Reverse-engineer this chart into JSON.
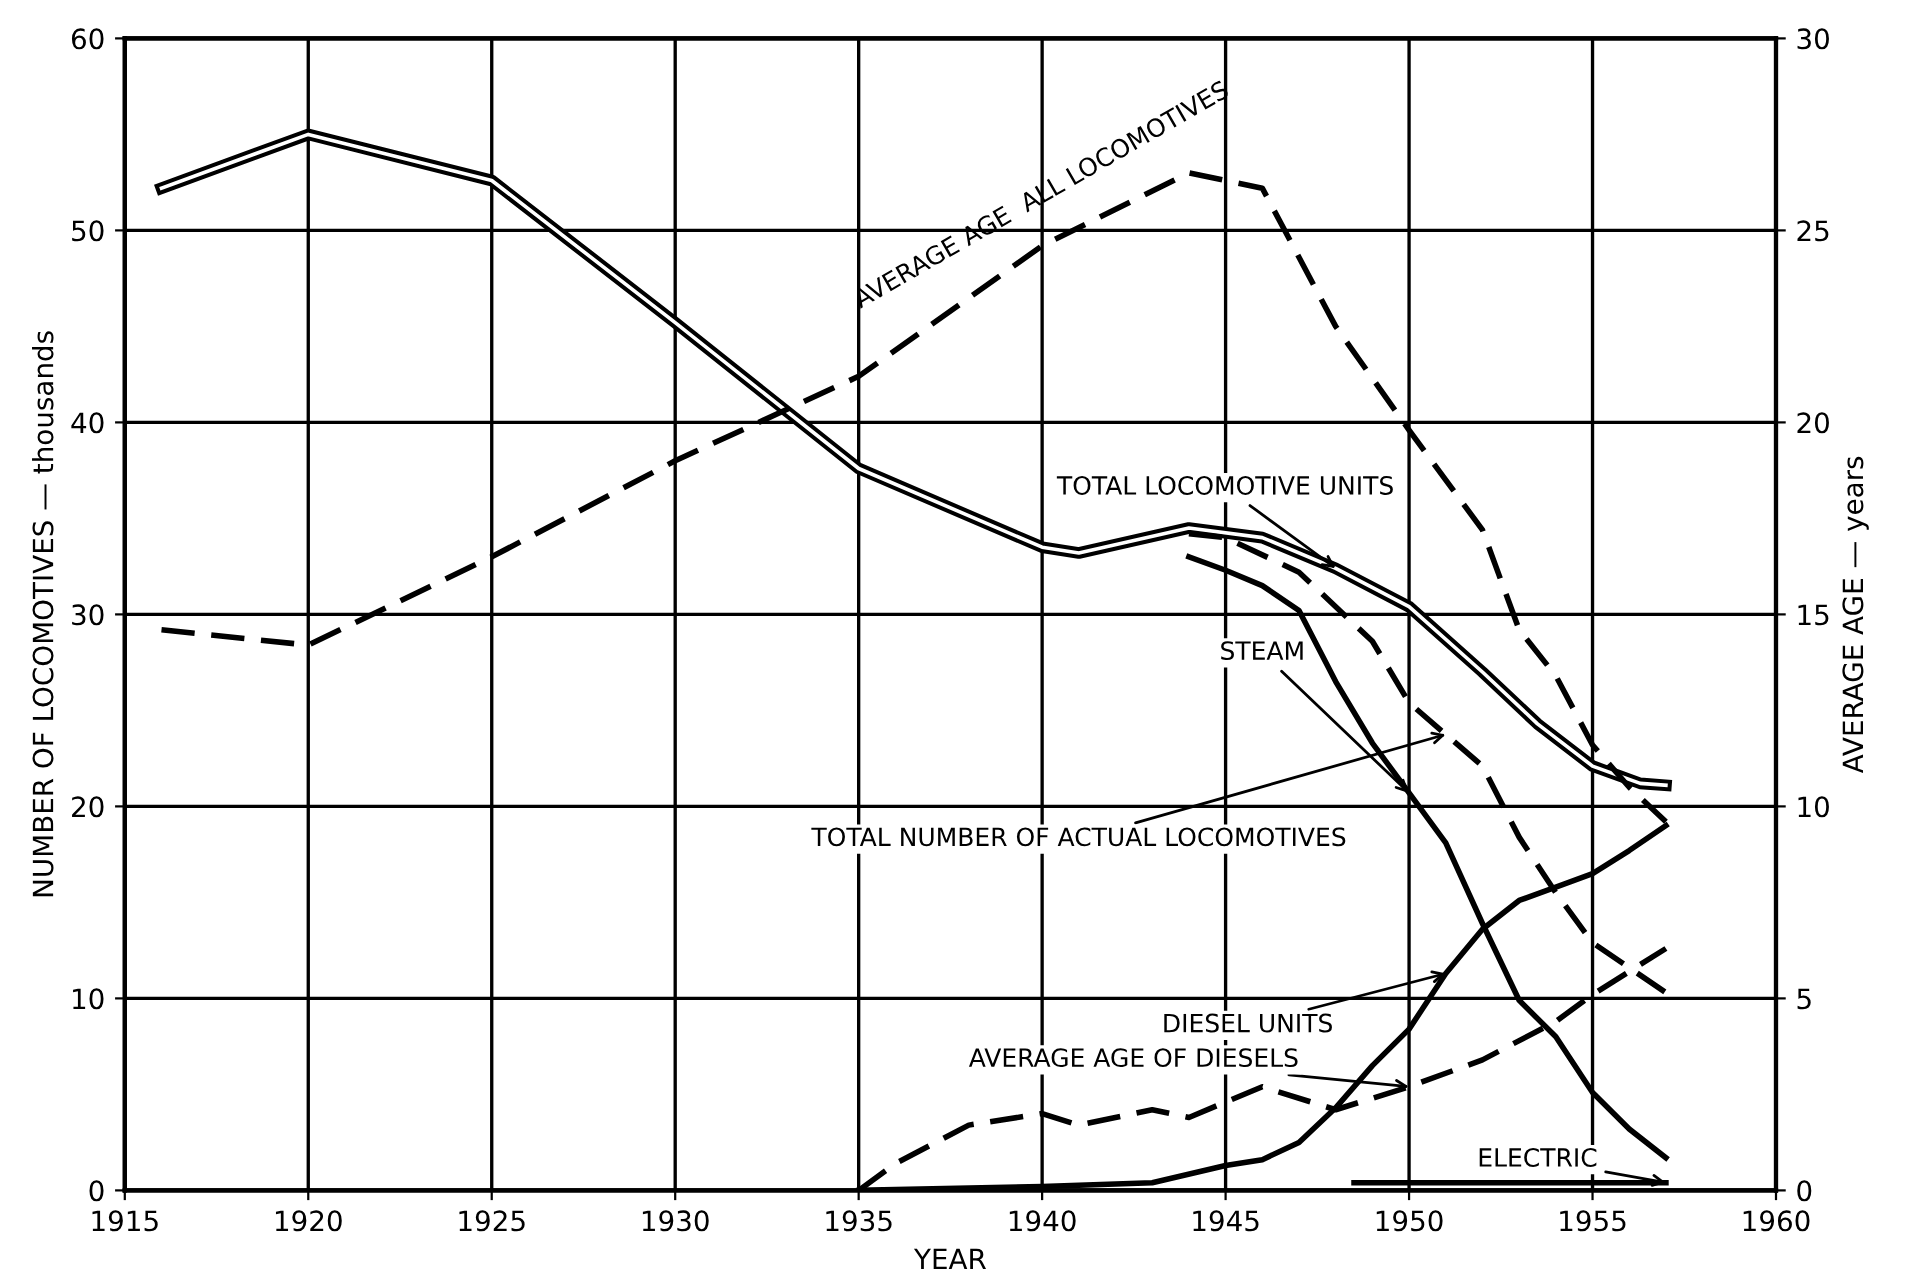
{
  "chart_data": {
    "type": "line",
    "xlabel": "YEAR",
    "ylabel": "NUMBER OF LOCOMOTIVES — thousands",
    "y2label": "AVERAGE AGE — years",
    "xlim": [
      1915,
      1960
    ],
    "xticks": [
      1915,
      1920,
      1925,
      1930,
      1935,
      1940,
      1945,
      1950,
      1955,
      1960
    ],
    "ylim": [
      0,
      60
    ],
    "yticks": [
      0,
      10,
      20,
      30,
      40,
      50,
      60
    ],
    "y2lim": [
      0,
      30
    ],
    "y2ticks": [
      0,
      5,
      10,
      15,
      20,
      25,
      30
    ],
    "grid": true,
    "legend": false,
    "marker": "none",
    "series": [
      {
        "name": "TOTAL LOCOMOTIVE UNITS",
        "color": "#000000",
        "line_style": "solid",
        "x": [
          1916,
          1920,
          1925,
          1930,
          1935,
          1940,
          1941,
          1944,
          1946,
          1948,
          1950,
          1952,
          1953.5,
          1955,
          1956.3,
          1957
        ],
        "values": [
          52.2,
          55.0,
          52.6,
          45.2,
          37.6,
          33.5,
          33.2,
          34.5,
          34.0,
          32.4,
          30.4,
          27.0,
          24.3,
          22.1,
          21.2,
          21.1
        ]
      },
      {
        "name": "TOTAL NUMBER OF ACTUAL LOCOMOTIVES",
        "color": "#000000",
        "line_style": "dashed",
        "x": [
          1944,
          1945,
          1947,
          1949,
          1950,
          1952,
          1953,
          1954,
          1955,
          1957
        ],
        "values": [
          34.2,
          34.0,
          32.2,
          28.6,
          25.4,
          22.1,
          18.4,
          15.5,
          12.9,
          10.3
        ]
      },
      {
        "name": "STEAM",
        "color": "#000000",
        "line_style": "solid",
        "x": [
          1944,
          1945,
          1946,
          1947,
          1948,
          1949,
          1950,
          1951,
          1952,
          1953,
          1954,
          1955,
          1956,
          1957
        ],
        "values": [
          33.0,
          32.3,
          31.5,
          30.2,
          26.5,
          23.3,
          20.7,
          18.1,
          13.9,
          9.9,
          8.0,
          5.1,
          3.2,
          1.7
        ]
      },
      {
        "name": "DIESEL UNITS",
        "color": "#000000",
        "line_style": "solid",
        "x": [
          1935,
          1940,
          1943,
          1945,
          1946,
          1947,
          1948,
          1949,
          1950,
          1951,
          1952,
          1953,
          1954,
          1955,
          1956,
          1957
        ],
        "values": [
          0,
          0.2,
          0.4,
          1.3,
          1.6,
          2.5,
          4.3,
          6.5,
          8.4,
          11.3,
          13.6,
          15.1,
          15.8,
          16.5,
          17.7,
          19.0
        ]
      },
      {
        "name": "ELECTRIC",
        "color": "#000000",
        "line_style": "solid",
        "x": [
          1948.5,
          1957
        ],
        "values": [
          0.4,
          0.4
        ]
      },
      {
        "name": "AVERAGE AGE  ALL LOCOMOTIVES",
        "color": "#000000",
        "line_style": "dashed",
        "axis": "y2",
        "x": [
          1916,
          1920,
          1925,
          1930,
          1935,
          1940,
          1944,
          1946,
          1948,
          1950,
          1952,
          1953,
          1954,
          1955,
          1956,
          1957
        ],
        "values": [
          14.6,
          14.2,
          16.5,
          19.0,
          21.2,
          24.6,
          26.5,
          26.1,
          22.5,
          19.8,
          17.2,
          14.6,
          13.4,
          11.6,
          10.5,
          9.6
        ]
      },
      {
        "name": "AVERAGE AGE OF DIESELS",
        "color": "#000000",
        "line_style": "dashed",
        "axis": "y2",
        "x": [
          1935,
          1936,
          1938,
          1940,
          1941,
          1943,
          1944,
          1946,
          1948,
          1950,
          1952,
          1954,
          1955,
          1957
        ],
        "values": [
          0,
          0.7,
          1.7,
          2.0,
          1.7,
          2.1,
          1.9,
          2.7,
          2.1,
          2.7,
          3.4,
          4.4,
          5.1,
          6.3
        ]
      }
    ]
  }
}
